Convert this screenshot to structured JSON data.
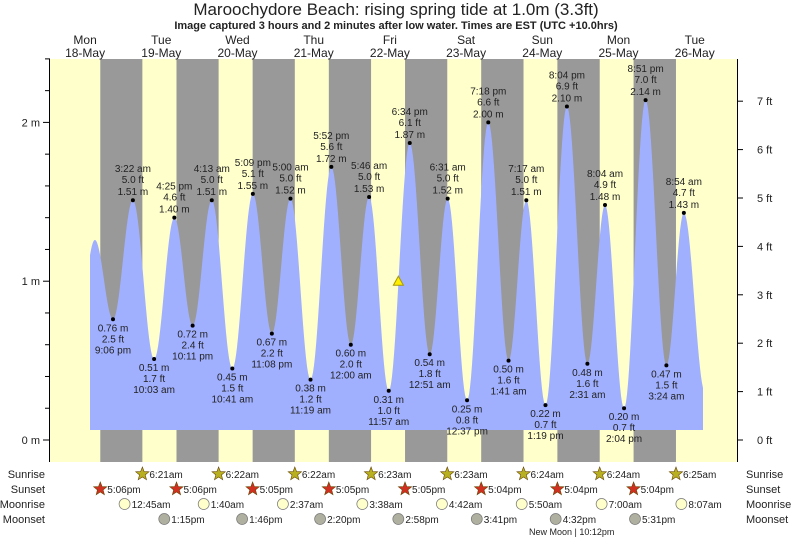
{
  "chart_data": {
    "type": "area",
    "title": "Maroochydore Beach: rising  spring tide at 1.0m (3.3ft)",
    "subtitle": "Image captured 3 hours and 2 minutes after low water. Times are EST (UTC +10.0hrs)",
    "days": [
      {
        "dow": "Mon",
        "date": "18-May"
      },
      {
        "dow": "Tue",
        "date": "19-May"
      },
      {
        "dow": "Wed",
        "date": "20-May"
      },
      {
        "dow": "Thu",
        "date": "21-May"
      },
      {
        "dow": "Fri",
        "date": "22-May"
      },
      {
        "dow": "Sat",
        "date": "23-May"
      },
      {
        "dow": "Sun",
        "date": "24-May"
      },
      {
        "dow": "Mon",
        "date": "25-May"
      },
      {
        "dow": "Tue",
        "date": "26-May"
      }
    ],
    "y_left": {
      "unit": "m",
      "range": [
        0,
        2.4
      ],
      "ticks": [
        "0 m",
        "1 m",
        "2 m"
      ]
    },
    "y_right": {
      "unit": "ft",
      "ticks": [
        "0 ft",
        "1 ft",
        "2 ft",
        "3 ft",
        "4 ft",
        "5 ft",
        "6 ft",
        "7 ft"
      ]
    },
    "current": {
      "day": 4,
      "time": "2:59pm",
      "height_m": 1.0
    },
    "extremes": [
      {
        "type": "low",
        "day": 0,
        "time": "9:06 pm",
        "m": "0.76 m",
        "ft": "2.5 ft",
        "value": 0.76
      },
      {
        "type": "high",
        "day": 1,
        "time": "3:22 am",
        "m": "1.51 m",
        "ft": "5.0 ft",
        "value": 1.51
      },
      {
        "type": "low",
        "day": 1,
        "time": "10:03 am",
        "m": "0.51 m",
        "ft": "1.7 ft",
        "value": 0.51
      },
      {
        "type": "high",
        "day": 1,
        "time": "4:25 pm",
        "m": "1.40 m",
        "ft": "4.6 ft",
        "value": 1.4
      },
      {
        "type": "low",
        "day": 1,
        "time": "10:11 pm",
        "m": "0.72 m",
        "ft": "2.4 ft",
        "value": 0.72
      },
      {
        "type": "high",
        "day": 2,
        "time": "4:13 am",
        "m": "1.51 m",
        "ft": "5.0 ft",
        "value": 1.51
      },
      {
        "type": "low",
        "day": 2,
        "time": "10:41 am",
        "m": "0.45 m",
        "ft": "1.5 ft",
        "value": 0.45
      },
      {
        "type": "high",
        "day": 2,
        "time": "5:09 pm",
        "m": "1.55 m",
        "ft": "5.1 ft",
        "value": 1.55
      },
      {
        "type": "low",
        "day": 2,
        "time": "11:08 pm",
        "m": "0.67 m",
        "ft": "2.2 ft",
        "value": 0.67
      },
      {
        "type": "high",
        "day": 3,
        "time": "5:00 am",
        "m": "1.52 m",
        "ft": "5.0 ft",
        "value": 1.52
      },
      {
        "type": "low",
        "day": 3,
        "time": "11:19 am",
        "m": "0.38 m",
        "ft": "1.2 ft",
        "value": 0.38
      },
      {
        "type": "high",
        "day": 3,
        "time": "5:52 pm",
        "m": "1.72 m",
        "ft": "5.6 ft",
        "value": 1.72
      },
      {
        "type": "low",
        "day": 4,
        "time": "12:00 am",
        "m": "0.60 m",
        "ft": "2.0 ft",
        "value": 0.6
      },
      {
        "type": "high",
        "day": 4,
        "time": "5:46 am",
        "m": "1.53 m",
        "ft": "5.0 ft",
        "value": 1.53
      },
      {
        "type": "low",
        "day": 4,
        "time": "11:57 am",
        "m": "0.31 m",
        "ft": "1.0 ft",
        "value": 0.31
      },
      {
        "type": "high",
        "day": 4,
        "time": "6:34 pm",
        "m": "1.87 m",
        "ft": "6.1 ft",
        "value": 1.87
      },
      {
        "type": "low",
        "day": 5,
        "time": "12:51 am",
        "m": "0.54 m",
        "ft": "1.8 ft",
        "value": 0.54
      },
      {
        "type": "high",
        "day": 5,
        "time": "6:31 am",
        "m": "1.52 m",
        "ft": "5.0 ft",
        "value": 1.52
      },
      {
        "type": "low",
        "day": 5,
        "time": "12:37 pm",
        "m": "0.25 m",
        "ft": "0.8 ft",
        "value": 0.25
      },
      {
        "type": "high",
        "day": 5,
        "time": "7:18 pm",
        "m": "2.00 m",
        "ft": "6.6 ft",
        "value": 2.0
      },
      {
        "type": "low",
        "day": 6,
        "time": "1:41 am",
        "m": "0.50 m",
        "ft": "1.6 ft",
        "value": 0.5
      },
      {
        "type": "high",
        "day": 6,
        "time": "7:17 am",
        "m": "1.51 m",
        "ft": "5.0 ft",
        "value": 1.51
      },
      {
        "type": "low",
        "day": 6,
        "time": "1:19 pm",
        "m": "0.22 m",
        "ft": "0.7 ft",
        "value": 0.22
      },
      {
        "type": "high",
        "day": 6,
        "time": "8:04 pm",
        "m": "2.10 m",
        "ft": "6.9 ft",
        "value": 2.1
      },
      {
        "type": "low",
        "day": 7,
        "time": "2:31 am",
        "m": "0.48 m",
        "ft": "1.6 ft",
        "value": 0.48
      },
      {
        "type": "high",
        "day": 7,
        "time": "8:04 am",
        "m": "1.48 m",
        "ft": "4.9 ft",
        "value": 1.48
      },
      {
        "type": "low",
        "day": 7,
        "time": "2:04 pm",
        "m": "0.20 m",
        "ft": "0.7 ft",
        "value": 0.2
      },
      {
        "type": "high",
        "day": 7,
        "time": "8:51 pm",
        "m": "2.14 m",
        "ft": "7.0 ft",
        "value": 2.14
      },
      {
        "type": "low",
        "day": 8,
        "time": "3:24 am",
        "m": "0.47 m",
        "ft": "1.5 ft",
        "value": 0.47
      },
      {
        "type": "high",
        "day": 8,
        "time": "8:54 am",
        "m": "1.43 m",
        "ft": "4.7 ft",
        "value": 1.43
      }
    ],
    "rows": {
      "labels": {
        "sunrise": "Sunrise",
        "sunset": "Sunset",
        "moonrise": "Moonrise",
        "moonset": "Moonset"
      },
      "sunrise": [
        {
          "day": 1,
          "time": "6:21am"
        },
        {
          "day": 2,
          "time": "6:22am"
        },
        {
          "day": 3,
          "time": "6:22am"
        },
        {
          "day": 4,
          "time": "6:23am"
        },
        {
          "day": 5,
          "time": "6:23am"
        },
        {
          "day": 6,
          "time": "6:24am"
        },
        {
          "day": 7,
          "time": "6:24am"
        },
        {
          "day": 8,
          "time": "6:25am"
        }
      ],
      "sunset": [
        {
          "day": 0,
          "time": "5:06pm"
        },
        {
          "day": 1,
          "time": "5:06pm"
        },
        {
          "day": 2,
          "time": "5:05pm"
        },
        {
          "day": 3,
          "time": "5:05pm"
        },
        {
          "day": 4,
          "time": "5:05pm"
        },
        {
          "day": 5,
          "time": "5:04pm"
        },
        {
          "day": 6,
          "time": "5:04pm"
        },
        {
          "day": 7,
          "time": "5:04pm"
        }
      ],
      "moonrise": [
        {
          "day": 1,
          "time": "12:45am"
        },
        {
          "day": 2,
          "time": "1:40am"
        },
        {
          "day": 3,
          "time": "2:37am"
        },
        {
          "day": 4,
          "time": "3:38am"
        },
        {
          "day": 5,
          "time": "4:42am"
        },
        {
          "day": 6,
          "time": "5:50am"
        },
        {
          "day": 7,
          "time": "7:00am"
        },
        {
          "day": 8,
          "time": "8:07am"
        }
      ],
      "moonset": [
        {
          "day": 1,
          "time": "1:15pm"
        },
        {
          "day": 2,
          "time": "1:46pm"
        },
        {
          "day": 3,
          "time": "2:20pm"
        },
        {
          "day": 4,
          "time": "2:58pm"
        },
        {
          "day": 5,
          "time": "3:41pm"
        },
        {
          "day": 6,
          "time": "4:32pm"
        },
        {
          "day": 7,
          "time": "5:31pm"
        }
      ],
      "moon_phase": {
        "day": 6,
        "time": "10:12pm",
        "label": "New Moon | 10:12pm"
      }
    },
    "colors": {
      "day": "#ffffcc",
      "night": "#999999",
      "water": "#a0b0ff",
      "day_label": "#ff2222",
      "sunrise_star": "#b8b020",
      "sunset_star": "#d03020",
      "moonrise": "#ffffcc",
      "moonset": "#b0b0a0"
    }
  }
}
